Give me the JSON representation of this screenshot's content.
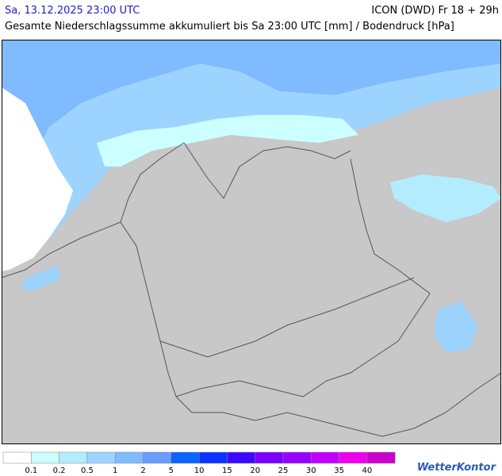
{
  "header": {
    "valid_time": "Sa, 13.12.2025 23:00 UTC",
    "model_run": "ICON (DWD) Fr 18 + 29h",
    "subtitle": "Gesamte Niederschlagssumme akkumuliert bis Sa 23:00 UTC [mm] / Bodendruck [hPa]"
  },
  "legend": {
    "colors": [
      "#ffffff",
      "#ccffff",
      "#b3ecff",
      "#9dd4ff",
      "#80bbff",
      "#6a9cff",
      "#0a64ff",
      "#0a32ff",
      "#3c0aff",
      "#7a00ff",
      "#9a00ff",
      "#c000ff",
      "#ee00ee",
      "#cc00cc"
    ],
    "labels": [
      "0.1",
      "0.2",
      "0.5",
      "1",
      "2",
      "5",
      "10",
      "15",
      "20",
      "25",
      "30",
      "35",
      "40"
    ]
  },
  "logo": "WetterKontor"
}
